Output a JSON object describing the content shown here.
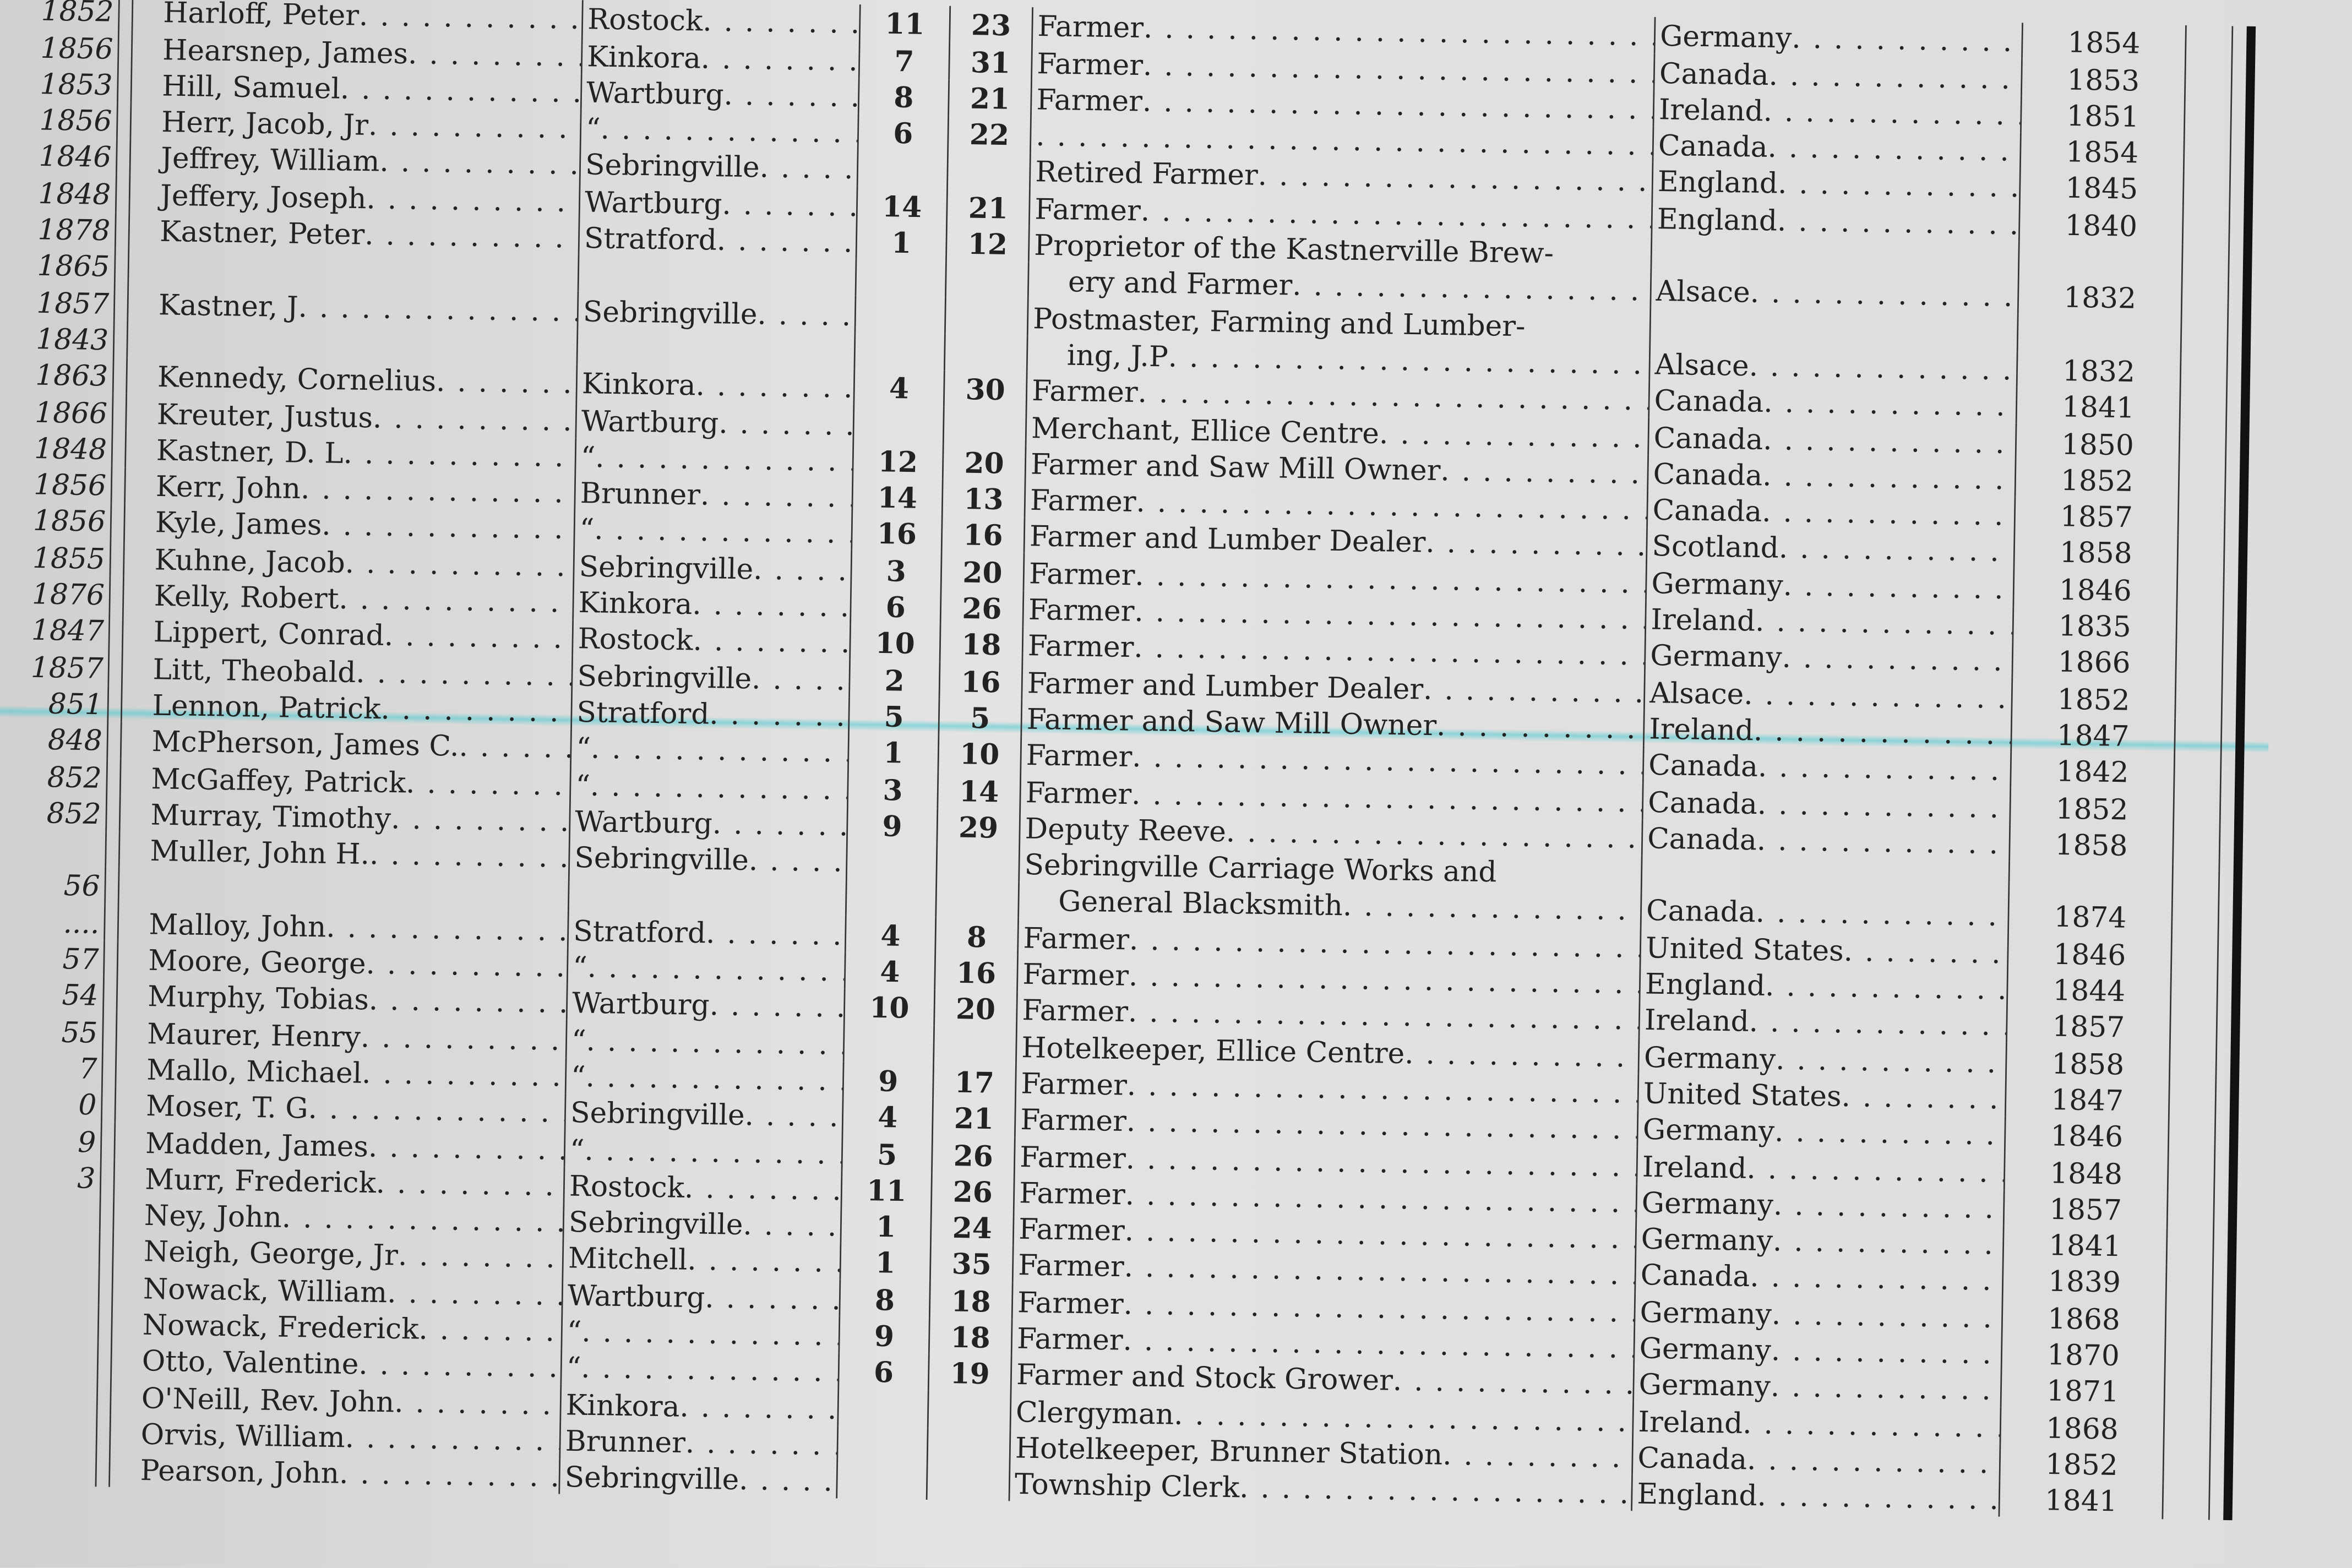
{
  "highlight_color": "#46c8d2",
  "rows": [
    {
      "left_year": [
        "1852"
      ],
      "name": "Harloff, Peter",
      "place": "Rostock",
      "lot": "11",
      "con": "23",
      "occupation": [
        "Farmer"
      ],
      "country": "Germany",
      "year": "1854"
    },
    {
      "left_year": [
        "1856"
      ],
      "name": "Hearsnep, James",
      "place": "Kinkora",
      "lot": "7",
      "con": "31",
      "occupation": [
        "Farmer"
      ],
      "country": "Canada",
      "year": "1853"
    },
    {
      "left_year": [
        "1853"
      ],
      "name": "Hill, Samuel",
      "place": "Wartburg",
      "lot": "8",
      "con": "21",
      "occupation": [
        "Farmer"
      ],
      "country": "Ireland",
      "year": "1851"
    },
    {
      "left_year": [
        "1856"
      ],
      "name": "Herr, Jacob, Jr",
      "place": "“",
      "lot": "6",
      "con": "22",
      "occupation": [
        ""
      ],
      "country": "Canada",
      "year": "1854"
    },
    {
      "left_year": [
        "1846"
      ],
      "name": "Jeffrey, William",
      "place": "Sebringville",
      "lot": "",
      "con": "",
      "occupation": [
        "Retired Farmer"
      ],
      "country": "England",
      "year": "1845"
    },
    {
      "left_year": [
        "1848"
      ],
      "name": "Jeffery, Joseph",
      "place": "Wartburg",
      "lot": "14",
      "con": "21",
      "occupation": [
        "Farmer"
      ],
      "country": "England",
      "year": "1840"
    },
    {
      "left_year": [
        "1878",
        "1865"
      ],
      "name": "Kastner, Peter",
      "place": "Stratford",
      "lot": "1",
      "con": "12",
      "occupation": [
        "Proprietor of the Kastnerville Brew-",
        "ery and Farmer"
      ],
      "country": "Alsace",
      "year": "1832"
    },
    {
      "left_year": [
        "1857",
        "1843"
      ],
      "name": "Kastner, J",
      "place": "Sebringville",
      "lot": "",
      "con": "",
      "occupation": [
        "Postmaster, Farming and Lumber-",
        "ing, J.P"
      ],
      "country": "Alsace",
      "year": "1832"
    },
    {
      "left_year": [
        "1863"
      ],
      "name": "Kennedy, Cornelius",
      "place": "Kinkora",
      "lot": "4",
      "con": "30",
      "occupation": [
        "Farmer"
      ],
      "country": "Canada",
      "year": "1841"
    },
    {
      "left_year": [
        "1866"
      ],
      "name": "Kreuter, Justus",
      "place": "Wartburg",
      "lot": "",
      "con": "",
      "occupation": [
        "Merchant, Ellice Centre"
      ],
      "country": "Canada",
      "year": "1850"
    },
    {
      "left_year": [
        "1848"
      ],
      "name": "Kastner, D. L",
      "place": "“",
      "lot": "12",
      "con": "20",
      "occupation": [
        "Farmer and Saw Mill Owner"
      ],
      "country": "Canada",
      "year": "1852"
    },
    {
      "left_year": [
        "1856"
      ],
      "name": "Kerr, John",
      "place": "Brunner",
      "lot": "14",
      "con": "13",
      "occupation": [
        "Farmer"
      ],
      "country": "Canada",
      "year": "1857"
    },
    {
      "left_year": [
        "1856"
      ],
      "name": "Kyle, James",
      "place": "“",
      "lot": "16",
      "con": "16",
      "occupation": [
        "Farmer and Lumber Dealer"
      ],
      "country": "Scotland",
      "year": "1858"
    },
    {
      "left_year": [
        "1855"
      ],
      "name": "Kuhne, Jacob",
      "place": "Sebringville",
      "lot": "3",
      "con": "20",
      "occupation": [
        "Farmer"
      ],
      "country": "Germany",
      "year": "1846"
    },
    {
      "left_year": [
        "1876"
      ],
      "name": "Kelly, Robert",
      "place": "Kinkora",
      "lot": "6",
      "con": "26",
      "occupation": [
        "Farmer"
      ],
      "country": "Ireland",
      "year": "1835"
    },
    {
      "left_year": [
        "1847"
      ],
      "name": "Lippert, Conrad",
      "place": "Rostock",
      "lot": "10",
      "con": "18",
      "occupation": [
        "Farmer"
      ],
      "country": "Germany",
      "year": "1866"
    },
    {
      "left_year": [
        "1857"
      ],
      "name": "Litt, Theobald",
      "place": "Sebringville",
      "lot": "2",
      "con": "16",
      "occupation": [
        "Farmer and Lumber Dealer"
      ],
      "country": "Alsace",
      "year": "1852"
    },
    {
      "left_year": [
        "851"
      ],
      "name": "Lennon, Patrick",
      "place": "Stratford",
      "lot": "5",
      "con": "5",
      "occupation": [
        "Farmer and Saw Mill Owner"
      ],
      "country": "Ireland",
      "year": "1847",
      "highlighted": true
    },
    {
      "left_year": [
        "848"
      ],
      "name": "McPherson, James C.",
      "place": "“",
      "lot": "1",
      "con": "10",
      "occupation": [
        "Farmer"
      ],
      "country": "Canada",
      "year": "1842"
    },
    {
      "left_year": [
        "852"
      ],
      "name": "McGaffey, Patrick",
      "place": "“",
      "lot": "3",
      "con": "14",
      "occupation": [
        "Farmer"
      ],
      "country": "Canada",
      "year": "1852"
    },
    {
      "left_year": [
        "852"
      ],
      "name": "Murray, Timothy",
      "place": "Wartburg",
      "lot": "9",
      "con": "29",
      "occupation": [
        "Deputy Reeve"
      ],
      "country": "Canada",
      "year": "1858"
    },
    {
      "left_year": [
        "",
        "56"
      ],
      "name": "Muller, John H.",
      "place": "Sebringville",
      "lot": "",
      "con": "",
      "occupation": [
        "Sebringville Carriage Works and",
        "General Blacksmith"
      ],
      "country": "Canada",
      "year": "1874"
    },
    {
      "left_year": [
        "...."
      ],
      "name": "Malloy, John",
      "place": "Stratford",
      "lot": "4",
      "con": "8",
      "occupation": [
        "Farmer"
      ],
      "country": "United States",
      "year": "1846"
    },
    {
      "left_year": [
        "57"
      ],
      "name": "Moore, George",
      "place": "“",
      "lot": "4",
      "con": "16",
      "occupation": [
        "Farmer"
      ],
      "country": "England",
      "year": "1844"
    },
    {
      "left_year": [
        "54"
      ],
      "name": "Murphy, Tobias",
      "place": "Wartburg",
      "lot": "10",
      "con": "20",
      "occupation": [
        "Farmer"
      ],
      "country": "Ireland",
      "year": "1857"
    },
    {
      "left_year": [
        "55"
      ],
      "name": "Maurer, Henry",
      "place": "“",
      "lot": "",
      "con": "",
      "occupation": [
        "Hotelkeeper, Ellice Centre"
      ],
      "country": "Germany",
      "year": "1858"
    },
    {
      "left_year": [
        "7"
      ],
      "name": "Mallo, Michael",
      "place": "“",
      "lot": "9",
      "con": "17",
      "occupation": [
        "Farmer"
      ],
      "country": "United States",
      "year": "1847"
    },
    {
      "left_year": [
        "0"
      ],
      "name": "Moser, T. G",
      "place": "Sebringville",
      "lot": "4",
      "con": "21",
      "occupation": [
        "Farmer"
      ],
      "country": "Germany",
      "year": "1846"
    },
    {
      "left_year": [
        "9"
      ],
      "name": "Madden, James",
      "place": "“",
      "lot": "5",
      "con": "26",
      "occupation": [
        "Farmer"
      ],
      "country": "Ireland",
      "year": "1848"
    },
    {
      "left_year": [
        "3"
      ],
      "name": "Murr, Frederick",
      "place": "Rostock",
      "lot": "11",
      "con": "26",
      "occupation": [
        "Farmer"
      ],
      "country": "Germany",
      "year": "1857"
    },
    {
      "left_year": [
        ""
      ],
      "name": "Ney, John",
      "place": "Sebringville",
      "lot": "1",
      "con": "24",
      "occupation": [
        "Farmer"
      ],
      "country": "Germany",
      "year": "1841"
    },
    {
      "left_year": [
        ""
      ],
      "name": "Neigh, George, Jr",
      "place": "Mitchell",
      "lot": "1",
      "con": "35",
      "occupation": [
        "Farmer"
      ],
      "country": "Canada",
      "year": "1839"
    },
    {
      "left_year": [
        ""
      ],
      "name": "Nowack, William",
      "place": "Wartburg",
      "lot": "8",
      "con": "18",
      "occupation": [
        "Farmer"
      ],
      "country": "Germany",
      "year": "1868"
    },
    {
      "left_year": [
        ""
      ],
      "name": "Nowack, Frederick",
      "place": "“",
      "lot": "9",
      "con": "18",
      "occupation": [
        "Farmer"
      ],
      "country": "Germany",
      "year": "1870"
    },
    {
      "left_year": [
        ""
      ],
      "name": "Otto, Valentine",
      "place": "“",
      "lot": "6",
      "con": "19",
      "occupation": [
        "Farmer and Stock Grower"
      ],
      "country": "Germany",
      "year": "1871"
    },
    {
      "left_year": [
        ""
      ],
      "name": "O'Neill, Rev. John",
      "place": "Kinkora",
      "lot": "",
      "con": "",
      "occupation": [
        "Clergyman"
      ],
      "country": "Ireland",
      "year": "1868"
    },
    {
      "left_year": [
        ""
      ],
      "name": "Orvis, William",
      "place": "Brunner",
      "lot": "",
      "con": "",
      "occupation": [
        "Hotelkeeper, Brunner Station"
      ],
      "country": "Canada",
      "year": "1852"
    },
    {
      "left_year": [
        ""
      ],
      "name": "Pearson, John",
      "place": "Sebringville",
      "lot": "",
      "con": "",
      "occupation": [
        "Township Clerk"
      ],
      "country": "England",
      "year": "1841"
    }
  ]
}
